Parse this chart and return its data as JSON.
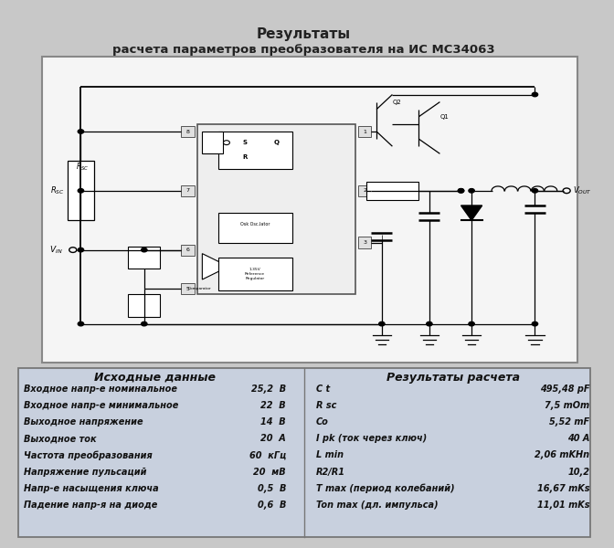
{
  "title_line1": "Результаты",
  "title_line2": "расчета параметров преобразователя на ИС МС34063",
  "left_header": "Исходные данные",
  "right_header": "Результаты расчета",
  "left_rows": [
    [
      "Входное напр-е номинальное",
      "25,2  В"
    ],
    [
      "Входное напр-е минимальное",
      "22  В"
    ],
    [
      "Выходное напряжение",
      "14  В"
    ],
    [
      "Выходное ток",
      "20  А"
    ],
    [
      "Частота преобразования",
      "60  кГц"
    ],
    [
      "Напряжение пульсаций",
      "20  мВ"
    ],
    [
      "Напр-е насыщения ключа",
      "0,5  В"
    ],
    [
      "Падение напр-я на диоде",
      "0,6  В"
    ]
  ],
  "right_rows": [
    [
      "C t",
      "495,48 pF"
    ],
    [
      "R sc",
      "7,5 mOm"
    ],
    [
      "Co",
      "5,52 mF"
    ],
    [
      "I pk (ток через ключ)",
      "40 A"
    ],
    [
      "L min",
      "2,06 mKHn"
    ],
    [
      "R2/R1",
      "10,2"
    ],
    [
      "T max (период колебаний)",
      "16,67 mKs"
    ],
    [
      "Ton max (дл. импульса)",
      "11,01 mKs"
    ]
  ]
}
